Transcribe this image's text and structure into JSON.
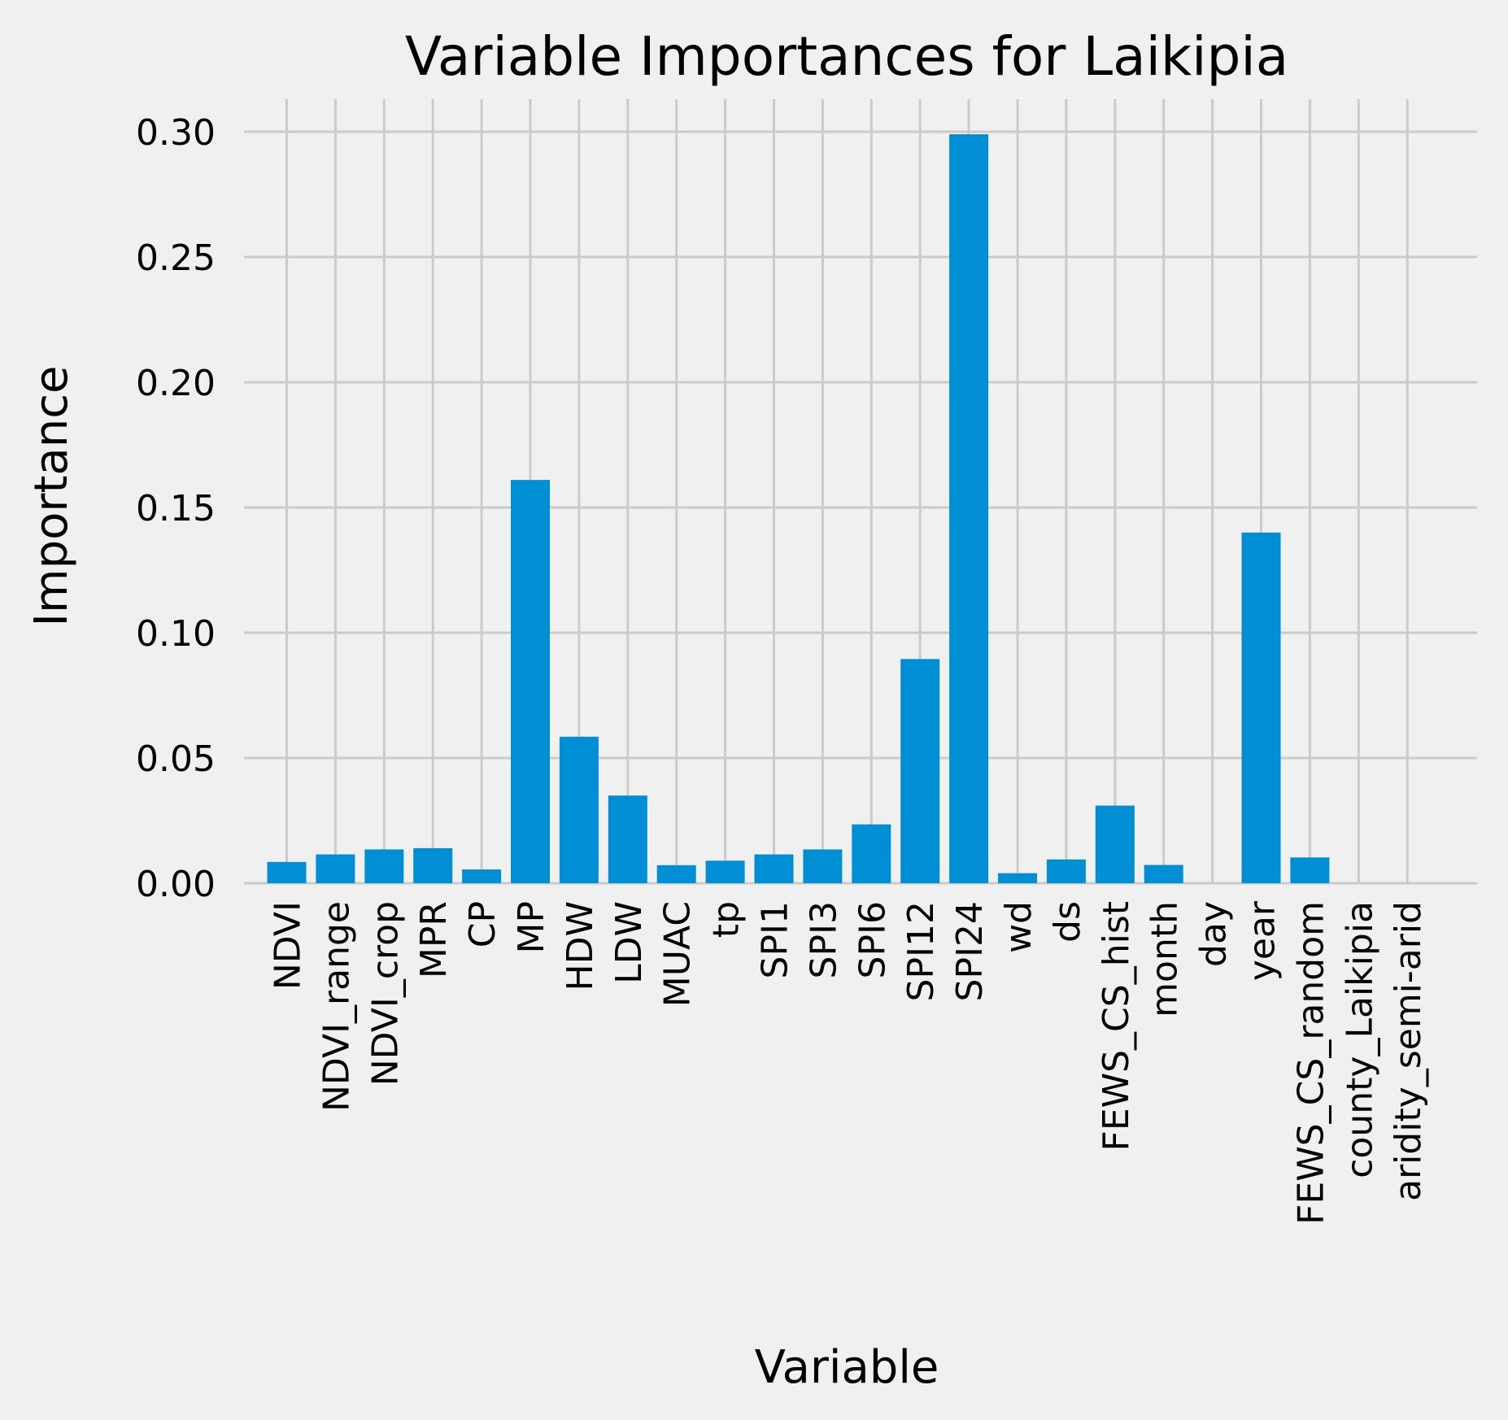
{
  "chart_data": {
    "type": "bar",
    "title": "Variable Importances for Laikipia",
    "xlabel": "Variable",
    "ylabel": "Importance",
    "categories": [
      "NDVI",
      "NDVI_range",
      "NDVI_crop",
      "MPR",
      "CP",
      "MP",
      "HDW",
      "LDW",
      "MUAC",
      "tp",
      "SPI1",
      "SPI3",
      "SPI6",
      "SPI12",
      "SPI24",
      "wd",
      "ds",
      "FEWS_CS_hist",
      "month",
      "day",
      "year",
      "FEWS_CS_random",
      "county_Laikipia",
      "aridity_semi-arid"
    ],
    "values": [
      0.0085,
      0.0115,
      0.0135,
      0.014,
      0.0055,
      0.161,
      0.0585,
      0.035,
      0.0072,
      0.009,
      0.0115,
      0.0135,
      0.0235,
      0.0895,
      0.299,
      0.004,
      0.0095,
      0.031,
      0.0073,
      0.0,
      0.14,
      0.0103,
      0.0,
      0.0
    ],
    "yticks": [
      "0.00",
      "0.05",
      "0.10",
      "0.15",
      "0.20",
      "0.25",
      "0.30"
    ],
    "ylim": [
      0,
      0.313
    ],
    "grid": true,
    "color": "#008fd5",
    "background": "#f0f0f0",
    "gridColor": "#cbcbcb"
  }
}
